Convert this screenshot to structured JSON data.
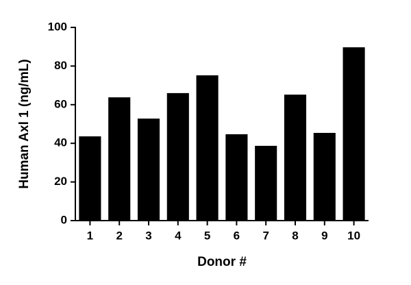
{
  "chart_data": {
    "type": "bar",
    "x_label": "Donor #",
    "y_label": "Human Axl 1 (ng/mL)",
    "categories": [
      "1",
      "2",
      "3",
      "4",
      "5",
      "6",
      "7",
      "8",
      "9",
      "10"
    ],
    "values": [
      43.6,
      63.8,
      52.8,
      66,
      75.2,
      44.7,
      38.7,
      65.2,
      45.4,
      89.7
    ],
    "color": "#000000",
    "ylim": [
      0,
      100
    ],
    "yticks": [
      0,
      20,
      40,
      60,
      80,
      100
    ],
    "grid": false
  }
}
